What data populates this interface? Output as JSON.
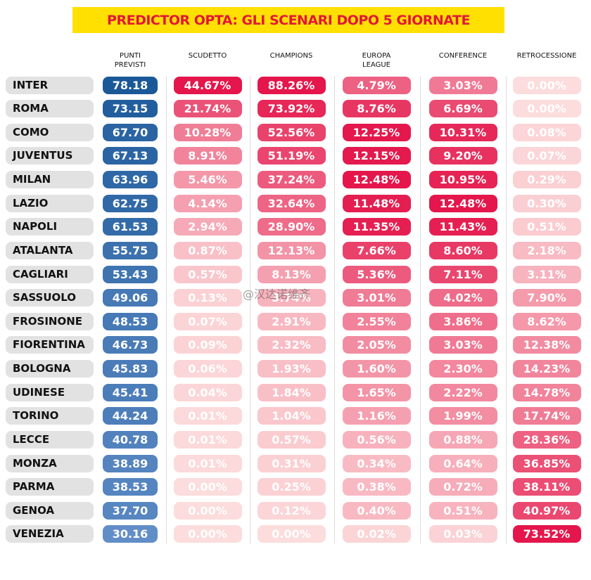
{
  "header": {
    "title": "PREDICTOR OPTA: GLI SCENARI DOPO 5 GIORNATE",
    "columns": [
      "PUNTI\nPREVISTI",
      "SCUDETTO",
      "CHAMPIONS",
      "EUROPA\nLEAGUE",
      "CONFERENCE",
      "RETROCESSIONE"
    ]
  },
  "watermark": "@汉达诺维齐",
  "table": {
    "rows": [
      [
        "INTER",
        "78.18",
        "44.67%",
        "88.26%",
        "4.79%",
        "3.03%",
        "0.00%"
      ],
      [
        "ROMA",
        "73.15",
        "21.74%",
        "73.92%",
        "8.76%",
        "6.69%",
        "0.00%"
      ],
      [
        "COMO",
        "67.70",
        "10.28%",
        "52.56%",
        "12.25%",
        "10.31%",
        "0.08%"
      ],
      [
        "JUVENTUS",
        "67.13",
        "8.91%",
        "51.19%",
        "12.15%",
        "9.20%",
        "0.07%"
      ],
      [
        "MILAN",
        "63.96",
        "5.46%",
        "37.24%",
        "12.48%",
        "10.95%",
        "0.29%"
      ],
      [
        "LAZIO",
        "62.75",
        "4.14%",
        "32.64%",
        "11.48%",
        "12.48%",
        "0.30%"
      ],
      [
        "NAPOLI",
        "61.53",
        "2.94%",
        "28.90%",
        "11.35%",
        "11.43%",
        "0.51%"
      ],
      [
        "ATALANTA",
        "55.75",
        "0.87%",
        "12.13%",
        "7.66%",
        "8.60%",
        "2.18%"
      ],
      [
        "CAGLIARI",
        "53.43",
        "0.57%",
        "8.13%",
        "5.36%",
        "7.11%",
        "3.11%"
      ],
      [
        "SASSUOLO",
        "49.06",
        "0.13%",
        "3.74%",
        "3.01%",
        "4.02%",
        "7.90%"
      ],
      [
        "FROSINONE",
        "48.53",
        "0.07%",
        "2.91%",
        "2.55%",
        "3.86%",
        "8.62%"
      ],
      [
        "FIORENTINA",
        "46.73",
        "0.09%",
        "2.32%",
        "2.05%",
        "3.03%",
        "12.38%"
      ],
      [
        "BOLOGNA",
        "45.83",
        "0.06%",
        "1.93%",
        "1.60%",
        "2.30%",
        "14.23%"
      ],
      [
        "UDINESE",
        "45.41",
        "0.04%",
        "1.84%",
        "1.65%",
        "2.22%",
        "14.78%"
      ],
      [
        "TORINO",
        "44.24",
        "0.01%",
        "1.04%",
        "1.16%",
        "1.99%",
        "17.74%"
      ],
      [
        "LECCE",
        "40.78",
        "0.01%",
        "0.57%",
        "0.56%",
        "0.88%",
        "28.36%"
      ],
      [
        "MONZA",
        "38.89",
        "0.01%",
        "0.31%",
        "0.34%",
        "0.64%",
        "36.85%"
      ],
      [
        "PARMA",
        "38.53",
        "0.00%",
        "0.25%",
        "0.38%",
        "0.72%",
        "38.11%"
      ],
      [
        "GENOA",
        "37.70",
        "0.00%",
        "0.12%",
        "0.40%",
        "0.51%",
        "40.97%"
      ],
      [
        "VENEZIA",
        "30.16",
        "0.00%",
        "0.00%",
        "0.02%",
        "0.03%",
        "73.52%"
      ]
    ]
  }
}
